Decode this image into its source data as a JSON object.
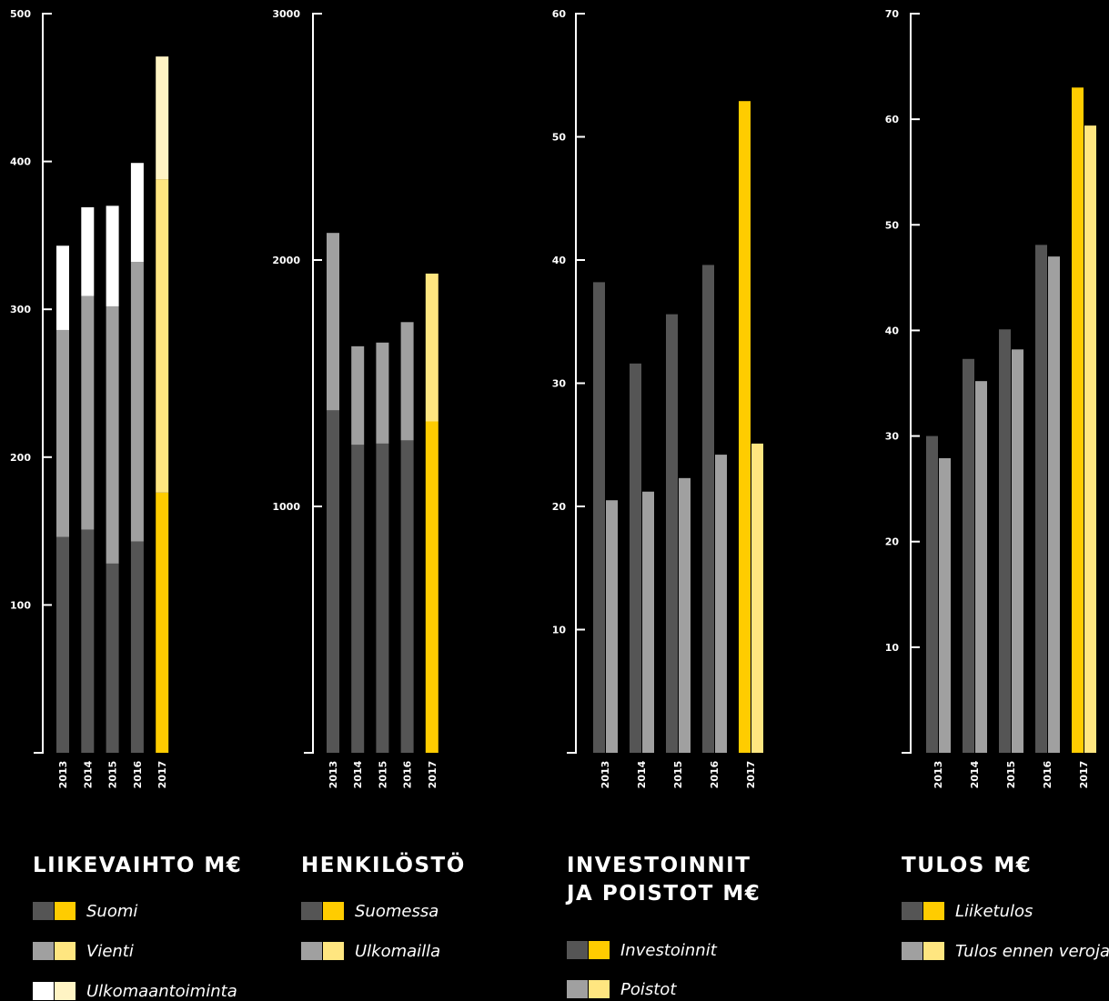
{
  "colors": {
    "background": "#000000",
    "axis": "#ffffff",
    "dark_gray": "#555555",
    "mid_gray": "#a0a0a0",
    "white": "#ffffff",
    "yellow": "#ffcc00",
    "light_yellow": "#ffe680",
    "pale_yellow": "#fff4c4"
  },
  "chart_data": [
    {
      "type": "bar",
      "stacked": true,
      "title": "LIIKEVAIHTO M€",
      "categories": [
        "2013",
        "2014",
        "2015",
        "2016",
        "2017"
      ],
      "series": [
        {
          "name": "Suomi",
          "values": [
            146,
            151,
            128,
            143,
            176
          ],
          "color": "#555555",
          "highlight_color": "#ffcc00"
        },
        {
          "name": "Vienti",
          "values": [
            140,
            158,
            174,
            189,
            212
          ],
          "color": "#a0a0a0",
          "highlight_color": "#ffe680"
        },
        {
          "name": "Ulkomaantoiminta",
          "values": [
            57,
            60,
            68,
            67,
            83
          ],
          "color": "#ffffff",
          "highlight_color": "#fff4c4"
        }
      ],
      "ylim": [
        0,
        500
      ],
      "yticks": [
        100,
        200,
        300,
        400,
        500
      ],
      "highlight_category": "2017",
      "grid": false
    },
    {
      "type": "bar",
      "stacked": true,
      "title": "HENKILÖSTÖ",
      "categories": [
        "2013",
        "2014",
        "2015",
        "2016",
        "2017"
      ],
      "series": [
        {
          "name": "Suomessa",
          "values": [
            1390,
            1250,
            1255,
            1268,
            1345
          ],
          "color": "#555555",
          "highlight_color": "#ffcc00"
        },
        {
          "name": "Ulkomailla",
          "values": [
            720,
            400,
            410,
            480,
            600
          ],
          "color": "#a0a0a0",
          "highlight_color": "#ffe680"
        }
      ],
      "ylim": [
        0,
        3000
      ],
      "yticks": [
        1000,
        2000,
        3000
      ],
      "highlight_category": "2017",
      "grid": false
    },
    {
      "type": "bar",
      "stacked": false,
      "title": "INVESTOINNIT\nJA POISTOT M€",
      "categories": [
        "2013",
        "2014",
        "2015",
        "2016",
        "2017"
      ],
      "series": [
        {
          "name": "Investoinnit",
          "values": [
            38.2,
            31.6,
            35.6,
            39.6,
            52.9
          ],
          "color": "#555555",
          "highlight_color": "#ffcc00"
        },
        {
          "name": "Poistot",
          "values": [
            20.5,
            21.2,
            22.3,
            24.2,
            25.1
          ],
          "color": "#a0a0a0",
          "highlight_color": "#ffe680"
        }
      ],
      "ylim": [
        0,
        60
      ],
      "yticks": [
        10,
        20,
        30,
        40,
        50,
        60
      ],
      "highlight_category": "2017",
      "grid": false
    },
    {
      "type": "bar",
      "stacked": false,
      "title": "TULOS M€",
      "categories": [
        "2013",
        "2014",
        "2015",
        "2016",
        "2017"
      ],
      "series": [
        {
          "name": "Liiketulos",
          "values": [
            30.0,
            37.3,
            40.1,
            48.1,
            63.0
          ],
          "color": "#555555",
          "highlight_color": "#ffcc00"
        },
        {
          "name": "Tulos ennen veroja",
          "values": [
            27.9,
            35.2,
            38.2,
            47.0,
            59.4
          ],
          "color": "#a0a0a0",
          "highlight_color": "#ffe680"
        }
      ],
      "ylim": [
        0,
        70
      ],
      "yticks": [
        10,
        20,
        30,
        40,
        50,
        60,
        70
      ],
      "highlight_category": "2017",
      "grid": false
    }
  ]
}
